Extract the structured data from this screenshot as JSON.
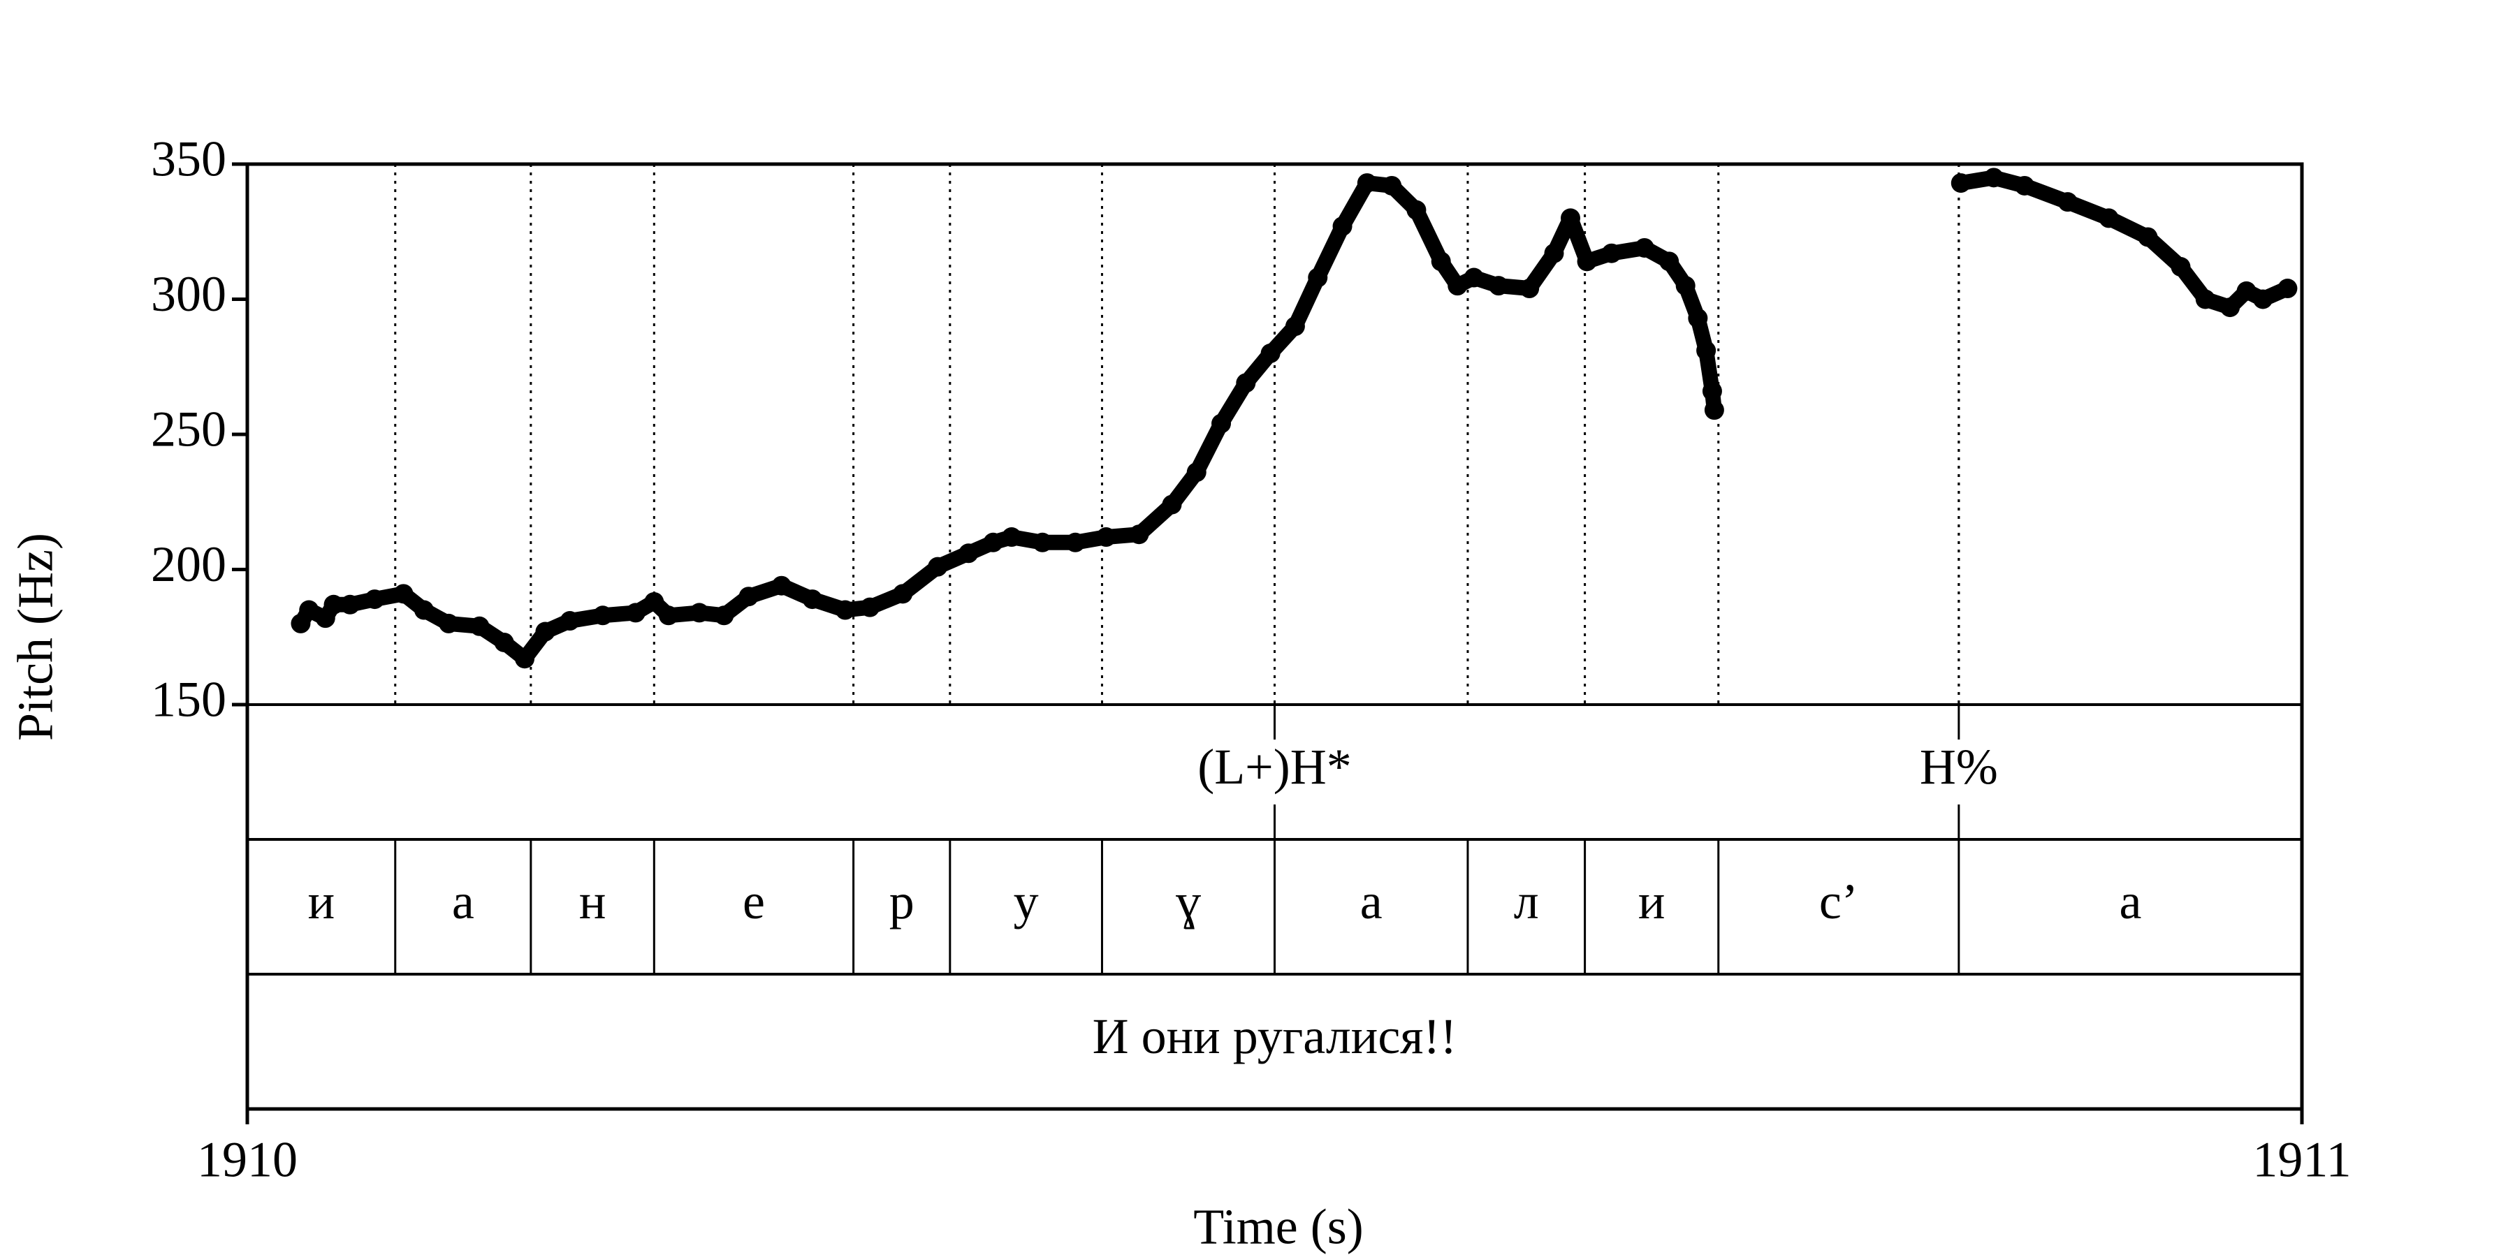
{
  "chart_data": {
    "type": "pitch",
    "xlabel": "Time (s)",
    "ylabel": "Pitch (Hz)",
    "color": "#000000",
    "x": [
      1910.026,
      1910.03,
      1910.038,
      1910.042,
      1910.05,
      1910.062,
      1910.076,
      1910.086,
      1910.098,
      1910.113,
      1910.125,
      1910.135,
      1910.145,
      1910.157,
      1910.173,
      1910.189,
      1910.198,
      1910.205,
      1910.22,
      1910.232,
      1910.244,
      1910.26,
      1910.275,
      1910.291,
      1910.303,
      1910.319,
      1910.336,
      1910.351,
      1910.363,
      1910.372,
      1910.387,
      1910.403,
      1910.418,
      1910.434,
      1910.45,
      1910.462,
      1910.474,
      1910.486,
      1910.498,
      1910.51,
      1910.521,
      1910.533,
      1910.545,
      1910.557,
      1910.569,
      1910.581,
      1910.589,
      1910.597,
      1910.609,
      1910.624,
      1910.636,
      1910.644,
      1910.652,
      1910.664,
      1910.68,
      1910.692,
      1910.7,
      1910.706,
      1910.71,
      1910.713,
      1910.714,
      1910.77,
      1910.834,
      1910.85,
      1910.865,
      1910.886,
      1910.906,
      1910.925,
      1910.941,
      1910.953,
      1910.965,
      1910.973,
      1910.981,
      1910.993
    ],
    "values": [
      180,
      185,
      182,
      187,
      187,
      189,
      191,
      185,
      180,
      179,
      173,
      167,
      177,
      181,
      183,
      184,
      188,
      183,
      184,
      183,
      190,
      194,
      189,
      185,
      186,
      191,
      201,
      206,
      210,
      212,
      210,
      210,
      212,
      213,
      224,
      236,
      254,
      269,
      280,
      290,
      308,
      327,
      343,
      342,
      333,
      314,
      305,
      308,
      305,
      304,
      317,
      330,
      314,
      317,
      319,
      314,
      305,
      293,
      281,
      266,
      259,
      null,
      343,
      345,
      342,
      336,
      330,
      323,
      312,
      300,
      297,
      303,
      300,
      304
    ],
    "xlim": [
      1910,
      1911
    ],
    "xticks": [
      1910,
      1911
    ],
    "ylim": [
      150,
      350
    ],
    "yticks": [
      150,
      200,
      250,
      300,
      350
    ]
  },
  "tiers": [
    {
      "type": "point",
      "points": [
        {
          "time": 1910.5,
          "text": "(L+)H*"
        },
        {
          "time": 1910.833,
          "text": "H%"
        }
      ]
    },
    {
      "type": "interval",
      "boundaries": [
        1910,
        1910.072,
        1910.138,
        1910.198,
        1910.295,
        1910.342,
        1910.416,
        1910.5,
        1910.594,
        1910.651,
        1910.716,
        1910.833,
        1911
      ],
      "labels": [
        "и",
        "а",
        "н",
        "е",
        "р",
        "у",
        "ɣ",
        "а",
        "л",
        "и",
        "с’",
        "а"
      ]
    },
    {
      "type": "interval",
      "boundaries": [
        1910,
        1911
      ],
      "labels": [
        "И они ругалися!!"
      ]
    }
  ]
}
